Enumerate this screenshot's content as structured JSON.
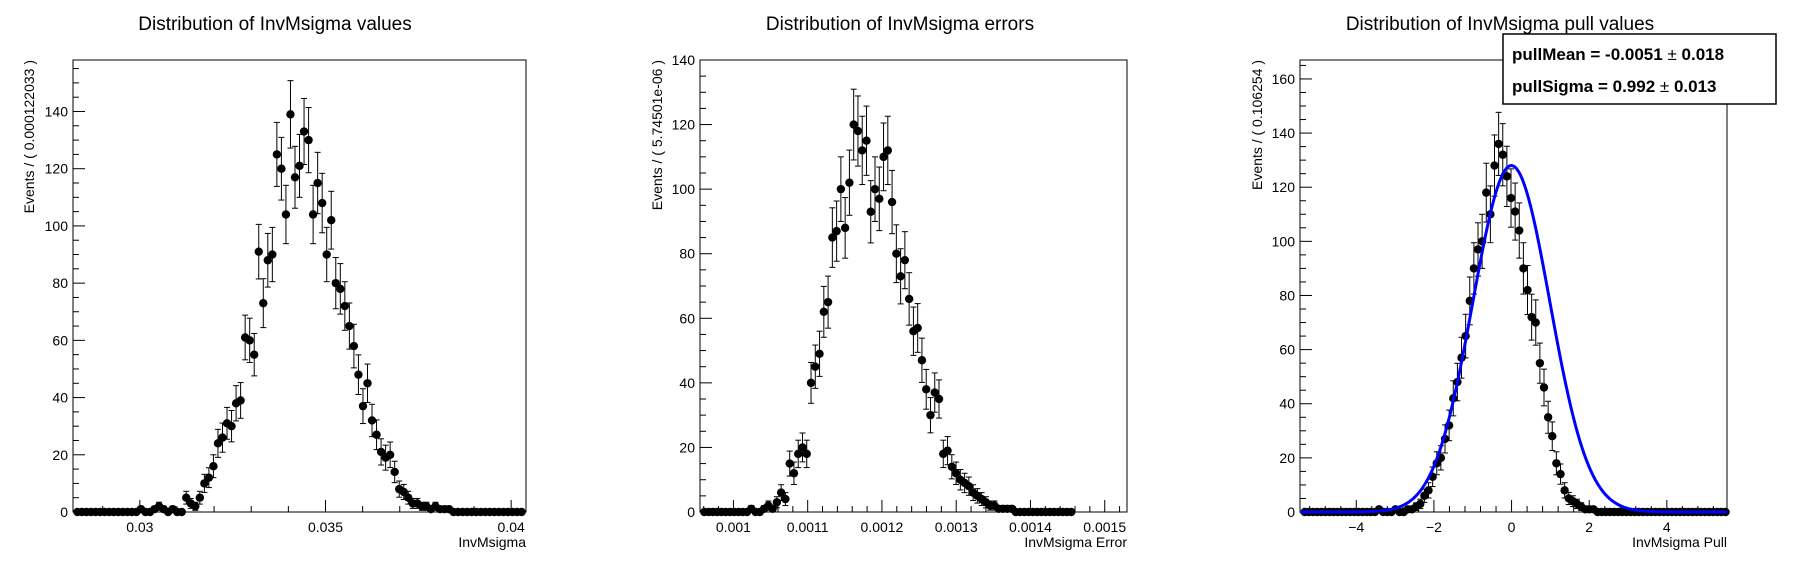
{
  "chart_data": [
    {
      "type": "scatter",
      "title": "Distribution of InvMsigma values",
      "xlabel": "InvMsigma",
      "ylabel": "Events / ( 0.000122033 )",
      "xlim": [
        0.0282,
        0.0404
      ],
      "ylim": [
        0,
        158
      ],
      "xticks": [
        0.03,
        0.035,
        0.04
      ],
      "xtick_labels": [
        "0.03",
        "0.035",
        "0.04"
      ],
      "yticks": [
        0,
        20,
        40,
        60,
        80,
        100,
        120,
        140
      ],
      "ytick_labels": [
        "0",
        "20",
        "40",
        "60",
        "80",
        "100",
        "120",
        "140"
      ],
      "x_start": 0.02826,
      "bin_width": 0.000122033,
      "values": [
        0,
        0,
        0,
        0,
        0,
        0,
        0,
        0,
        0,
        0,
        0,
        0,
        0,
        0,
        1,
        0,
        0,
        1,
        2,
        1,
        0,
        1,
        0,
        0,
        5,
        3,
        2,
        5,
        10,
        12,
        16,
        24,
        26,
        31,
        30,
        38,
        39,
        61,
        60,
        55,
        91,
        73,
        88,
        90,
        125,
        120,
        104,
        139,
        117,
        121,
        133,
        130,
        104,
        115,
        108,
        90,
        102,
        80,
        78,
        72,
        65,
        58,
        48,
        37,
        45,
        32,
        27,
        21,
        19,
        20,
        14,
        8,
        7,
        5,
        3,
        3,
        2,
        2,
        1,
        2,
        1,
        1,
        1,
        0,
        0,
        0,
        0,
        0,
        0,
        0,
        0,
        0,
        0,
        0,
        0,
        0,
        0,
        0,
        0
      ]
    },
    {
      "type": "scatter",
      "title": "Distribution of InvMsigma errors",
      "xlabel": "InvMsigma Error",
      "ylabel": "Events / ( 5.74501e-06 )",
      "xlim": [
        0.000955,
        0.00153
      ],
      "ylim": [
        0,
        140
      ],
      "xticks": [
        0.001,
        0.0011,
        0.0012,
        0.0013,
        0.0014,
        0.0015
      ],
      "xtick_labels": [
        "0.001",
        "0.0011",
        "0.0012",
        "0.0013",
        "0.0014",
        "0.0015"
      ],
      "yticks": [
        0,
        20,
        40,
        60,
        80,
        100,
        120,
        140
      ],
      "ytick_labels": [
        "0",
        "20",
        "40",
        "60",
        "80",
        "100",
        "120",
        "140"
      ],
      "x_start": 0.000958,
      "bin_width": 5.74501e-06,
      "values": [
        0,
        0,
        0,
        0,
        0,
        0,
        0,
        0,
        0,
        0,
        0,
        1,
        0,
        0,
        1,
        2,
        1,
        3,
        6,
        4,
        15,
        12,
        18,
        20,
        18,
        40,
        45,
        49,
        62,
        65,
        85,
        87,
        100,
        88,
        102,
        120,
        118,
        112,
        115,
        93,
        100,
        97,
        110,
        112,
        96,
        80,
        73,
        78,
        66,
        56,
        57,
        47,
        38,
        30,
        37,
        35,
        18,
        19,
        14,
        12,
        10,
        9,
        8,
        6,
        5,
        4,
        3,
        2,
        2,
        1,
        1,
        1,
        1,
        0,
        0,
        0,
        0,
        0,
        0,
        0,
        0,
        0,
        0,
        0,
        0,
        0,
        0
      ]
    },
    {
      "type": "scatter",
      "title": "Distribution of InvMsigma pull values",
      "xlabel": "InvMsigma Pull",
      "ylabel": "Events / ( 0.106254 )",
      "xlim": [
        -5.45,
        5.55
      ],
      "ylim": [
        0,
        167
      ],
      "xticks": [
        -4,
        -2,
        0,
        2,
        4
      ],
      "xtick_labels": [
        "−4",
        "−2",
        "0",
        "2",
        "4"
      ],
      "yticks": [
        0,
        20,
        40,
        60,
        80,
        100,
        120,
        140,
        160
      ],
      "ytick_labels": [
        "0",
        "20",
        "40",
        "60",
        "80",
        "100",
        "120",
        "140",
        "160"
      ],
      "x_start": -5.38,
      "bin_width": 0.106254,
      "values": [
        0,
        0,
        0,
        0,
        0,
        0,
        0,
        0,
        0,
        0,
        0,
        0,
        0,
        0,
        0,
        0,
        0,
        0,
        1,
        0,
        0,
        0,
        1,
        0,
        0,
        1,
        1,
        2,
        3,
        6,
        8,
        13,
        18,
        20,
        27,
        32,
        42,
        48,
        57,
        65,
        78,
        90,
        97,
        100,
        118,
        110,
        128,
        136,
        132,
        124,
        116,
        111,
        104,
        90,
        82,
        72,
        70,
        55,
        46,
        35,
        28,
        18,
        14,
        8,
        5,
        4,
        3,
        2,
        1,
        1,
        1,
        0,
        0,
        0,
        0,
        0,
        0,
        0,
        0,
        0,
        0,
        0,
        0,
        0,
        0,
        0,
        0,
        0,
        0,
        0,
        0,
        0,
        0,
        0,
        0,
        0,
        0,
        0,
        0,
        0,
        0,
        0,
        0
      ],
      "fit": {
        "type": "gaussian",
        "amplitude": 128,
        "mean": -0.0051,
        "sigma": 0.992,
        "color": "#0000ff"
      },
      "stats_box": [
        {
          "label": "pullMean = ",
          "value": "-0.0051",
          "pm": "±",
          "err": "0.018"
        },
        {
          "label": "pullSigma = ",
          "value": " 0.992",
          "pm": "±",
          "err": "0.013"
        }
      ]
    }
  ]
}
